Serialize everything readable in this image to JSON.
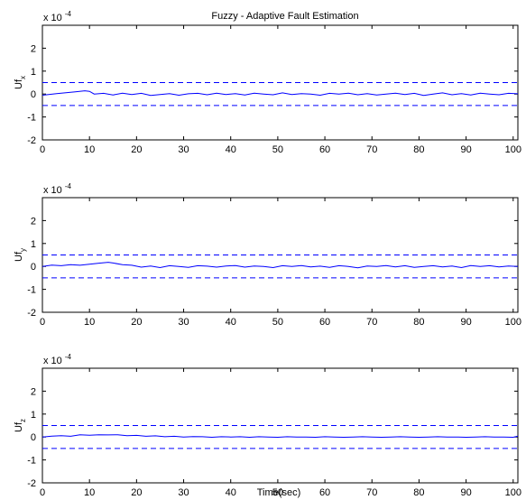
{
  "figure": {
    "title": "Fuzzy - Adaptive Fault Estimation",
    "xlabel": "Time(sec)"
  },
  "chart_data": [
    {
      "type": "line",
      "title": "Fuzzy - Adaptive Fault Estimation",
      "ylabel": "Uf",
      "ylabel_sub": "x",
      "scale_prefix": "x 10",
      "scale_exp": "-4",
      "xlim": [
        0,
        101
      ],
      "ylim": [
        -2,
        3
      ],
      "xticks": [
        0,
        10,
        20,
        30,
        40,
        50,
        60,
        70,
        80,
        90,
        100
      ],
      "yticks": [
        -2,
        -1,
        0,
        1,
        2
      ],
      "grid": false,
      "series": [
        {
          "color": "#0000ff",
          "style": "solid",
          "x": [
            0,
            3,
            5,
            7,
            9,
            10,
            11,
            13,
            15,
            17,
            19,
            21,
            23,
            25,
            27,
            29,
            31,
            33,
            35,
            37,
            39,
            41,
            43,
            45,
            47,
            49,
            51,
            53,
            55,
            57,
            59,
            61,
            63,
            65,
            67,
            69,
            71,
            73,
            75,
            77,
            79,
            81,
            83,
            85,
            87,
            89,
            91,
            93,
            95,
            97,
            99,
            101
          ],
          "y": [
            -0.05,
            0.02,
            0.06,
            0.1,
            0.14,
            0.12,
            0.0,
            0.03,
            -0.04,
            0.04,
            -0.02,
            0.03,
            -0.06,
            -0.02,
            0.02,
            -0.05,
            0.01,
            0.03,
            -0.03,
            0.04,
            -0.02,
            0.02,
            -0.04,
            0.04,
            0.0,
            -0.03,
            0.05,
            -0.02,
            0.02,
            0.0,
            -0.05,
            0.03,
            0.0,
            0.04,
            -0.03,
            0.02,
            -0.04,
            0.0,
            0.04,
            -0.02,
            0.03,
            -0.06,
            0.0,
            0.05,
            -0.03,
            0.02,
            -0.04,
            0.04,
            0.0,
            -0.03,
            0.03,
            0.01
          ]
        },
        {
          "color": "#0000ff",
          "style": "dashed",
          "x": [
            0,
            101
          ],
          "y": [
            0.5,
            0.5
          ]
        },
        {
          "color": "#0000ff",
          "style": "dashed",
          "x": [
            0,
            101
          ],
          "y": [
            -0.5,
            -0.5
          ]
        }
      ]
    },
    {
      "type": "line",
      "title": "",
      "ylabel": "Uf",
      "ylabel_sub": "y",
      "scale_prefix": "x 10",
      "scale_exp": "-4",
      "xlim": [
        0,
        101
      ],
      "ylim": [
        -2,
        3
      ],
      "xticks": [
        0,
        10,
        20,
        30,
        40,
        50,
        60,
        70,
        80,
        90,
        100
      ],
      "yticks": [
        -2,
        -1,
        0,
        1,
        2
      ],
      "grid": false,
      "series": [
        {
          "color": "#0000ff",
          "style": "solid",
          "x": [
            0,
            2,
            4,
            6,
            8,
            10,
            12,
            14,
            15,
            17,
            19,
            21,
            23,
            25,
            27,
            29,
            31,
            33,
            35,
            37,
            39,
            41,
            43,
            45,
            47,
            49,
            51,
            53,
            55,
            57,
            59,
            61,
            63,
            65,
            67,
            69,
            71,
            73,
            75,
            77,
            79,
            81,
            83,
            85,
            87,
            89,
            91,
            93,
            95,
            97,
            99,
            101
          ],
          "y": [
            0.0,
            0.06,
            0.03,
            0.08,
            0.05,
            0.1,
            0.14,
            0.18,
            0.15,
            0.08,
            0.05,
            -0.03,
            0.02,
            -0.05,
            0.03,
            0.0,
            -0.04,
            0.03,
            0.01,
            -0.03,
            0.02,
            0.04,
            -0.03,
            0.02,
            0.0,
            -0.05,
            0.03,
            0.0,
            0.04,
            -0.02,
            0.01,
            -0.04,
            0.03,
            0.0,
            -0.06,
            0.02,
            0.0,
            0.04,
            -0.02,
            0.03,
            -0.04,
            0.0,
            0.03,
            -0.02,
            0.02,
            -0.05,
            0.04,
            0.0,
            0.03,
            -0.02,
            0.02,
            0.0
          ]
        },
        {
          "color": "#0000ff",
          "style": "dashed",
          "x": [
            0,
            101
          ],
          "y": [
            0.5,
            0.5
          ]
        },
        {
          "color": "#0000ff",
          "style": "dashed",
          "x": [
            0,
            101
          ],
          "y": [
            -0.5,
            -0.5
          ]
        }
      ]
    },
    {
      "type": "line",
      "title": "",
      "ylabel": "Uf",
      "ylabel_sub": "z",
      "scale_prefix": "x 10",
      "scale_exp": "-4",
      "xlim": [
        0,
        101
      ],
      "ylim": [
        -2,
        3
      ],
      "xticks": [
        0,
        10,
        20,
        30,
        40,
        50,
        60,
        70,
        80,
        90,
        100
      ],
      "yticks": [
        -2,
        -1,
        0,
        1,
        2
      ],
      "grid": false,
      "series": [
        {
          "color": "#0000ff",
          "style": "solid",
          "x": [
            0,
            2,
            4,
            6,
            8,
            10,
            12,
            14,
            16,
            18,
            20,
            22,
            24,
            26,
            28,
            30,
            32,
            34,
            36,
            38,
            40,
            42,
            44,
            46,
            48,
            50,
            52,
            54,
            56,
            58,
            60,
            62,
            64,
            66,
            68,
            70,
            72,
            74,
            76,
            78,
            80,
            82,
            84,
            86,
            88,
            90,
            92,
            94,
            96,
            98,
            100,
            101
          ],
          "y": [
            0.0,
            0.04,
            0.06,
            0.03,
            0.1,
            0.08,
            0.1,
            0.09,
            0.1,
            0.06,
            0.07,
            0.03,
            0.05,
            0.01,
            0.03,
            0.0,
            0.02,
            0.01,
            -0.01,
            0.01,
            0.0,
            0.01,
            -0.01,
            0.01,
            0.0,
            -0.01,
            0.01,
            0.0,
            0.0,
            -0.01,
            0.01,
            0.0,
            -0.01,
            0.0,
            0.01,
            0.0,
            -0.01,
            0.0,
            0.01,
            0.0,
            -0.01,
            0.0,
            0.01,
            0.0,
            0.0,
            -0.01,
            0.0,
            0.01,
            0.0,
            0.0,
            -0.01,
            0.04
          ]
        },
        {
          "color": "#0000ff",
          "style": "dashed",
          "x": [
            0,
            101
          ],
          "y": [
            0.5,
            0.5
          ]
        },
        {
          "color": "#0000ff",
          "style": "dashed",
          "x": [
            0,
            101
          ],
          "y": [
            -0.5,
            -0.5
          ]
        }
      ]
    }
  ]
}
